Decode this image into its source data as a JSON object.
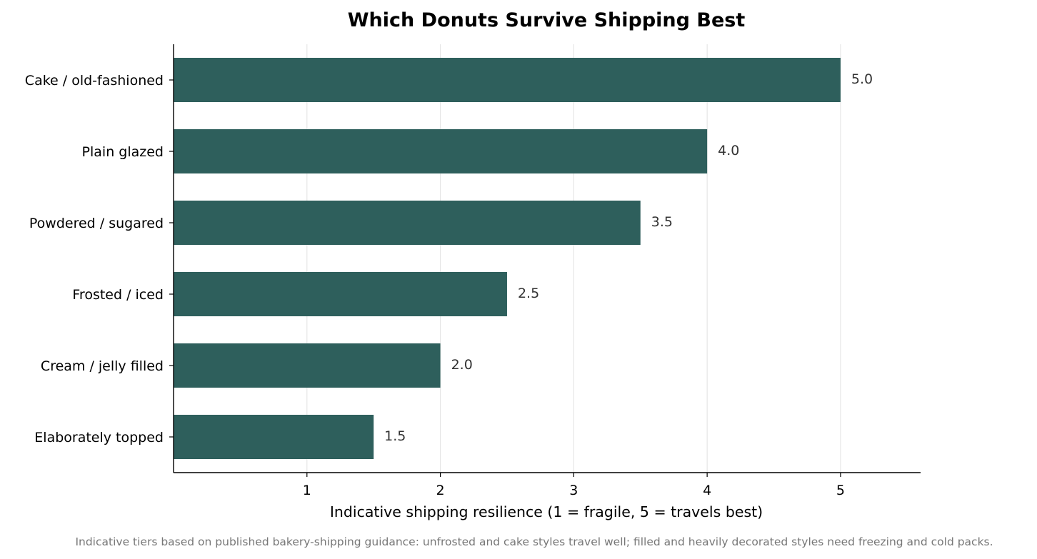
{
  "chart_data": {
    "type": "bar",
    "orientation": "horizontal",
    "title": "Which Donuts Survive Shipping Best",
    "xlabel": "Indicative shipping resilience  (1 = fragile, 5 = travels best)",
    "ylabel": "",
    "categories": [
      "Cake / old-fashioned",
      "Plain glazed",
      "Powdered / sugared",
      "Frosted / iced",
      "Cream / jelly filled",
      "Elaborately topped"
    ],
    "values": [
      5.0,
      4.0,
      3.5,
      2.5,
      2.0,
      1.5
    ],
    "value_labels": [
      "5.0",
      "4.0",
      "3.5",
      "2.5",
      "2.0",
      "1.5"
    ],
    "xlim": [
      0,
      5.6
    ],
    "xticks": [
      1,
      2,
      3,
      4,
      5
    ],
    "xtick_labels": [
      "1",
      "2",
      "3",
      "4",
      "5"
    ],
    "grid": "vertical",
    "legend": "none",
    "bar_color": "#2e5f5c",
    "footnote": "Indicative tiers based on published bakery-shipping guidance: unfrosted and cake styles travel well; filled and heavily decorated styles need freezing and cold packs."
  }
}
